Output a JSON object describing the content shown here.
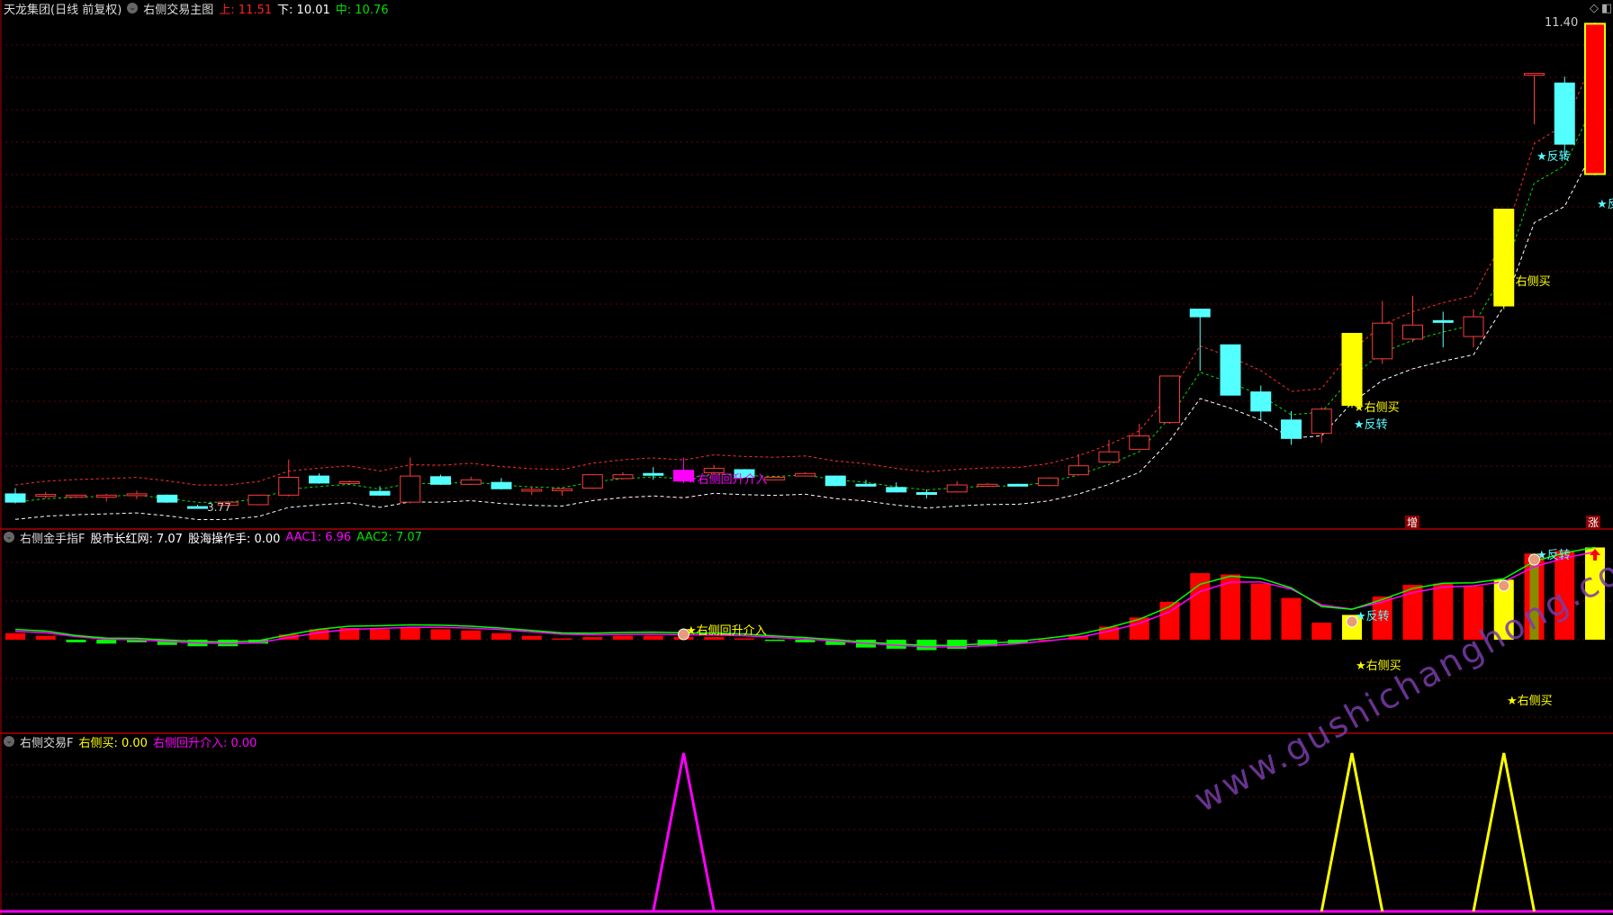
{
  "main": {
    "stock": "天龙集团(日线 前复权)",
    "indicator": "右侧交易主图",
    "upper_label": "上: 11.51",
    "lower_label": "下: 10.01",
    "mid_label": "中: 10.76",
    "high_price": "11.40",
    "low_price": "3.77",
    "signal_buy": "★右侧买",
    "signal_rebound": "★右侧回升介入",
    "signal_reverse": "★反转",
    "signal_reverse_cut": "★反",
    "tag_increase": "增",
    "tag_rise": "涨",
    "colors": {
      "up": "#ff3b3b",
      "down": "#54ffff",
      "signal": "#ffff00",
      "rebound": "#ff00ff",
      "upper_line": "#ff3030",
      "mid_line": "#00e000",
      "lower_line": "#ffffff"
    },
    "candles": [
      [
        4.0,
        3.87,
        4.09,
        3.85,
        "down"
      ],
      [
        3.98,
        3.99,
        4.03,
        3.93,
        "up"
      ],
      [
        3.97,
        3.98,
        3.99,
        3.96,
        "up"
      ],
      [
        3.95,
        3.98,
        4.0,
        3.88,
        "up"
      ],
      [
        3.98,
        4.0,
        4.05,
        3.92,
        "up"
      ],
      [
        3.98,
        3.87,
        3.99,
        3.86,
        "down"
      ],
      [
        3.8,
        3.79,
        3.83,
        3.77,
        "down"
      ],
      [
        3.82,
        3.87,
        3.89,
        3.8,
        "up"
      ],
      [
        3.83,
        3.98,
        3.99,
        3.82,
        "up"
      ],
      [
        3.98,
        4.26,
        4.54,
        3.96,
        "up"
      ],
      [
        4.28,
        4.17,
        4.32,
        4.16,
        "down"
      ],
      [
        4.17,
        4.19,
        4.21,
        4.16,
        "up"
      ],
      [
        4.04,
        3.98,
        4.12,
        3.97,
        "down"
      ],
      [
        3.87,
        4.28,
        4.57,
        3.85,
        "up"
      ],
      [
        4.27,
        4.15,
        4.3,
        4.14,
        "down"
      ],
      [
        4.15,
        4.22,
        4.27,
        4.14,
        "up"
      ],
      [
        4.18,
        4.08,
        4.25,
        4.07,
        "down"
      ],
      [
        4.05,
        4.07,
        4.12,
        3.98,
        "up"
      ],
      [
        4.05,
        4.08,
        4.1,
        3.97,
        "up"
      ],
      [
        4.09,
        4.3,
        4.31,
        4.08,
        "up"
      ],
      [
        4.24,
        4.3,
        4.34,
        4.23,
        "up"
      ],
      [
        4.32,
        4.3,
        4.42,
        4.22,
        "down"
      ],
      [
        4.37,
        4.2,
        4.57,
        4.17,
        "rebound"
      ],
      [
        4.33,
        4.4,
        4.45,
        4.32,
        "up"
      ],
      [
        4.38,
        4.26,
        4.39,
        4.25,
        "down"
      ],
      [
        4.22,
        4.26,
        4.28,
        4.21,
        "up"
      ],
      [
        4.28,
        4.32,
        4.34,
        4.27,
        "up"
      ],
      [
        4.28,
        4.13,
        4.28,
        4.12,
        "down"
      ],
      [
        4.15,
        4.13,
        4.22,
        4.12,
        "down"
      ],
      [
        4.1,
        4.03,
        4.18,
        4.02,
        "down"
      ],
      [
        4.02,
        4.0,
        4.07,
        3.93,
        "down"
      ],
      [
        4.03,
        4.14,
        4.2,
        4.02,
        "up"
      ],
      [
        4.12,
        4.15,
        4.17,
        4.11,
        "up"
      ],
      [
        4.15,
        4.13,
        4.16,
        4.12,
        "down"
      ],
      [
        4.13,
        4.25,
        4.26,
        4.12,
        "up"
      ],
      [
        4.3,
        4.44,
        4.63,
        4.29,
        "up"
      ],
      [
        4.5,
        4.66,
        4.85,
        4.49,
        "up"
      ],
      [
        4.7,
        4.91,
        5.1,
        4.69,
        "up"
      ],
      [
        5.12,
        5.85,
        5.85,
        5.1,
        "up"
      ],
      [
        6.9,
        6.78,
        6.9,
        5.93,
        "down"
      ],
      [
        6.34,
        5.55,
        6.34,
        5.55,
        "down"
      ],
      [
        5.6,
        5.3,
        5.7,
        5.16,
        "down"
      ],
      [
        5.16,
        4.87,
        5.3,
        4.77,
        "down"
      ],
      [
        4.95,
        5.33,
        5.36,
        4.8,
        "up"
      ],
      [
        5.39,
        6.52,
        6.52,
        5.35,
        "signal"
      ],
      [
        6.12,
        6.68,
        7.03,
        6.04,
        "up"
      ],
      [
        6.43,
        6.65,
        7.11,
        6.38,
        "up"
      ],
      [
        6.72,
        6.7,
        6.86,
        6.3,
        "down"
      ],
      [
        6.47,
        6.78,
        6.9,
        6.3,
        "up"
      ],
      [
        6.95,
        8.47,
        8.47,
        6.9,
        "signal"
      ],
      [
        10.58,
        10.6,
        10.6,
        9.8,
        "up"
      ],
      [
        10.45,
        9.49,
        10.55,
        9.24,
        "down"
      ],
      [
        9.02,
        11.38,
        11.4,
        9.0,
        "signal"
      ]
    ]
  },
  "ind1": {
    "name": "右侧金手指F",
    "v1_label": "股市长红网: 7.07",
    "v2_label": "股海操作手: 0.00",
    "aac1_label": "AAC1: 6.96",
    "aac2_label": "AAC2: 7.07",
    "colors": {
      "pos": "#ff0000",
      "neg": "#00ff00",
      "signal": "#ffff00",
      "aac1": "#ff00ff",
      "aac2": "#00ff00"
    },
    "bars": [
      0.5,
      0.3,
      -0.2,
      -0.3,
      -0.2,
      -0.4,
      -0.5,
      -0.5,
      -0.3,
      0.4,
      0.8,
      0.9,
      0.8,
      0.9,
      0.8,
      0.7,
      0.5,
      0.3,
      0.1,
      0.2,
      0.3,
      0.3,
      0.2,
      0.2,
      0.1,
      -0.1,
      -0.2,
      -0.4,
      -0.6,
      -0.7,
      -0.8,
      -0.7,
      -0.5,
      -0.3,
      0,
      0.3,
      1.0,
      1.7,
      2.9,
      5.1,
      5.0,
      4.3,
      3.2,
      1.3,
      1.9,
      3.3,
      4.2,
      4.3,
      4.1,
      4.6,
      6.6,
      6.8,
      7.07
    ]
  },
  "ind2": {
    "name": "右侧交易F",
    "buy_label": "右侧买: 0.00",
    "rebound_label": "右侧回升介入: 0.00",
    "buy_peaks": [
      44,
      49
    ],
    "rebound_peaks": [
      22
    ]
  },
  "watermark": "www.gushichanghong.com"
}
